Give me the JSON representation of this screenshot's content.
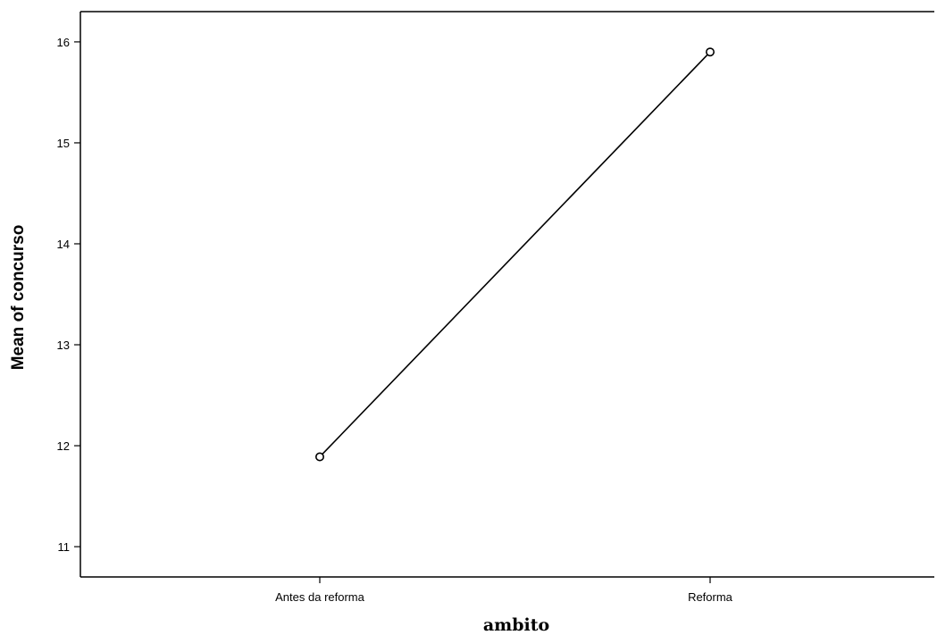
{
  "chart_data": {
    "type": "line",
    "categories": [
      "Antes da reforma",
      "Reforma"
    ],
    "series": [
      {
        "values": [
          11.89,
          15.9
        ]
      }
    ],
    "xlabel": "ambito",
    "ylabel": "Mean of concurso",
    "yticks": [
      11,
      12,
      13,
      14,
      15,
      16
    ],
    "ylim": [
      10.7,
      16.3
    ],
    "grid": false,
    "markers": "open-circle",
    "colors": {
      "line": "#000000",
      "background": "#ffffff"
    }
  }
}
